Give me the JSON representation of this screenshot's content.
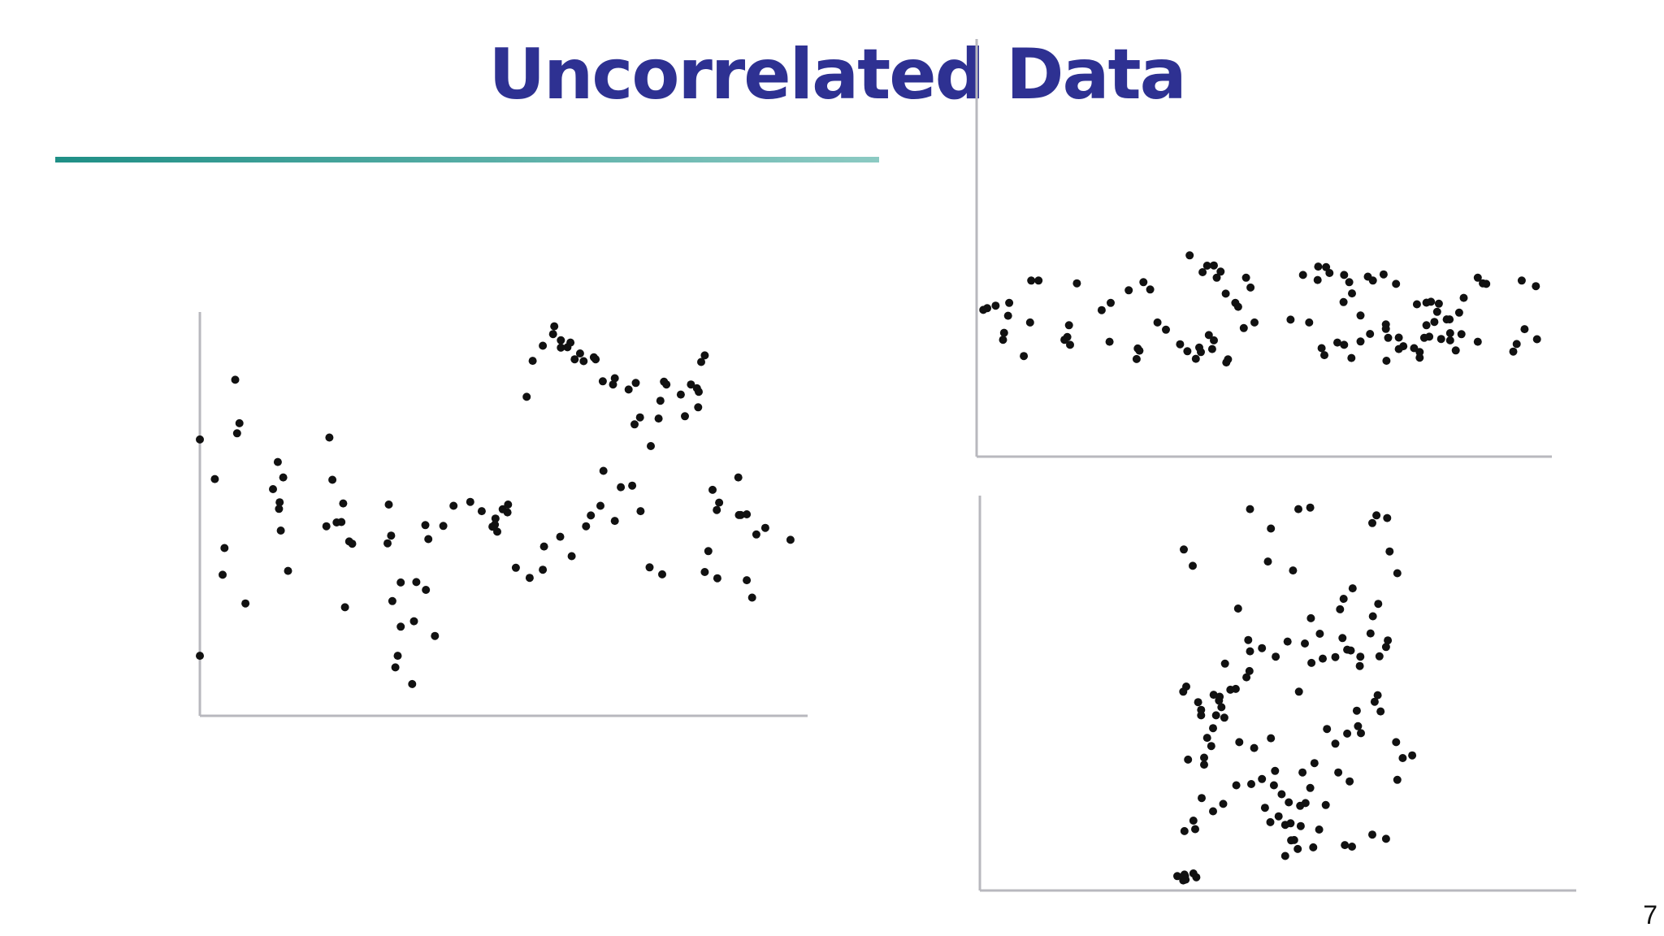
{
  "slide": {
    "title": "Uncorrelated Data",
    "page_number": "7",
    "accent_color": "#2e3192",
    "rule_gradient": [
      "#1f8f86",
      "#8ccac3"
    ]
  },
  "chart_data": [
    {
      "type": "scatter",
      "title": "",
      "xlabel": "",
      "ylabel": "",
      "xlim": [
        0,
        100
      ],
      "ylim": [
        0,
        100
      ],
      "grid": false,
      "x": [
        0,
        2.5,
        0,
        5.9,
        6.2,
        3.8,
        4.1,
        6.6,
        7.6,
        12.2,
        13.0,
        13.9,
        13.3,
        13.2,
        13.5,
        14.7,
        21.6,
        22.1,
        21.1,
        22.8,
        23.9,
        23.6,
        24.9,
        25.4,
        24.2,
        31.5,
        31.9,
        31.3,
        33.0,
        32.6,
        35.4,
        35.7,
        39.2,
        38.1,
        37.6,
        40.6,
        37.7,
        36.1,
        33.5,
        32.1,
        33.5,
        42.3,
        45.1,
        47.0,
        49.3,
        49.2,
        48.8,
        49.6,
        51.3,
        51.4,
        50.5,
        54.5,
        55.5,
        58.9,
        57.2,
        60.2,
        59.1,
        61.8,
        61.3,
        62.5,
        60.2,
        64.0,
        63.4,
        66.0,
        65.7,
        68.9,
        67.2,
        69.2,
        71.5,
        72.7,
        73.4,
        72.5,
        75.2,
        76.8,
        77.4,
        77.8,
        76.5,
        80.9,
        80.2,
        83.2,
        82.9,
        83.6,
        84.2,
        81.9,
        83.1,
        85.5,
        86.2,
        84.2,
        84.8,
        86.3,
        86.6,
        89.8,
        90.2,
        89.9,
        91.2,
        92.8,
        94.3,
        98.5,
        91.2,
        92.1,
        75.0,
        77.1,
        72.1,
        67.3,
        70.2,
        73.5,
        69.2,
        66.8,
        65.2,
        64.4,
        60.1,
        57.2,
        55.0,
        52.7,
        57.4,
        62.0
      ],
      "y": [
        71.3,
        61.1,
        15.5,
        86.7,
        72.9,
        36.4,
        43.3,
        75.5,
        29.0,
        58.5,
        65.5,
        61.5,
        55.1,
        53.4,
        47.8,
        37.4,
        71.8,
        60.9,
        48.9,
        49.9,
        54.8,
        50.0,
        45.0,
        44.4,
        28.0,
        54.5,
        46.5,
        44.5,
        15.5,
        12.5,
        8.2,
        24.4,
        20.6,
        45.6,
        49.2,
        49.0,
        32.5,
        34.5,
        23.0,
        29.6,
        34.4,
        54.2,
        55.2,
        52.8,
        50.9,
        49.3,
        48.8,
        47.5,
        52.5,
        54.5,
        53.3,
        82.3,
        91.6,
        98.5,
        95.5,
        96.9,
        100.5,
        96.3,
        95.1,
        92.0,
        95.0,
        91.5,
        93.5,
        92.0,
        92.5,
        85.5,
        86.3,
        87.1,
        84.2,
        85.9,
        77.0,
        75.2,
        69.6,
        81.3,
        86.2,
        85.5,
        76.7,
        77.3,
        82.9,
        83.6,
        84.5,
        91.3,
        93.0,
        85.5,
        79.6,
        58.3,
        53.1,
        37.1,
        42.5,
        35.5,
        55.0,
        61.5,
        51.8,
        51.8,
        52.0,
        46.8,
        48.5,
        45.4,
        35.0,
        30.5,
        38.3,
        36.5,
        59.4,
        63.2,
        59.0,
        52.8,
        50.3,
        54.2,
        51.7,
        48.9,
        46.2,
        37.7,
        35.6,
        38.2,
        43.7,
        41.2
      ]
    },
    {
      "type": "scatter",
      "title": "",
      "xlabel": "",
      "ylabel": "",
      "xlim": [
        0,
        100
      ],
      "ylim": [
        0,
        100
      ],
      "grid": false,
      "x": [
        1.3,
        2.8,
        5.2,
        5.0,
        8.9,
        9.1,
        10.4,
        4.3,
        7.8,
        4.1,
        0.6,
        17.2,
        15.8,
        15.0,
        15.5,
        16.0,
        21.6,
        23.2,
        23.0,
        26.4,
        29.0,
        30.2,
        28.0,
        27.8,
        28.3,
        31.5,
        33.0,
        35.5,
        36.8,
        38.3,
        39.2,
        38.9,
        41.2,
        41.5,
        40.6,
        43.7,
        44.0,
        46.8,
        45.3,
        45.8,
        48.7,
        43.6,
        42.0,
        39.5,
        37.2,
        40.3,
        42.7,
        41.5,
        47.2,
        48.0,
        55.1,
        57.3,
        58.4,
        59.9,
        60.0,
        62.0,
        61.4,
        64.6,
        65.5,
        67.5,
        64.5,
        66.0,
        68.8,
        69.7,
        71.6,
        73.8,
        72.0,
        72.4,
        74.3,
        75.1,
        77.0,
        78.0,
        78.0,
        78.8,
        79.2,
        80.6,
        80.0,
        81.4,
        83.3,
        83.4,
        85.4,
        85.8,
        88.3,
        89.8,
        89.2,
        96.1,
        98.6,
        98.8,
        96.6,
        95.2,
        94.6,
        88.3,
        84.4,
        81.8,
        79.7,
        82.8,
        85.0,
        83.4,
        81.1,
        79.2,
        77.5,
        74.3,
        72.1,
        72.0,
        69.2,
        67.5,
        65.9,
        64.6,
        63.4,
        61.1,
        60.6
      ],
      "y": [
        53.1,
        54.0,
        55.0,
        50.4,
        48.0,
        63.0,
        63.0,
        44.3,
        36.0,
        41.8,
        52.5,
        62.0,
        47.0,
        41.8,
        42.8,
        40.0,
        52.4,
        55.0,
        41.1,
        59.5,
        62.4,
        59.8,
        38.7,
        34.9,
        37.9,
        48.0,
        45.4,
        40.2,
        37.7,
        35.0,
        37.4,
        39.0,
        38.5,
        41.6,
        43.5,
        33.7,
        34.8,
        46.0,
        55.0,
        53.6,
        48.0,
        58.3,
        64.0,
        66.0,
        72.0,
        68.3,
        66.2,
        68.4,
        64.0,
        60.5,
        49.0,
        65.0,
        48.0,
        63.2,
        68.0,
        65.7,
        67.8,
        65.0,
        62.4,
        50.5,
        55.3,
        58.4,
        64.4,
        63.0,
        65.2,
        61.8,
        47.3,
        42.5,
        42.6,
        39.5,
        38.8,
        37.4,
        35.4,
        42.5,
        47.0,
        48.2,
        55.4,
        54.7,
        49.1,
        41.6,
        43.8,
        56.8,
        64.0,
        61.8,
        62.0,
        63.0,
        61.0,
        42.0,
        45.6,
        40.3,
        37.6,
        41.1,
        38.0,
        42.1,
        42.9,
        49.1,
        51.5,
        44.2,
        51.8,
        55.1,
        54.5,
        38.5,
        34.3,
        45.7,
        43.9,
        41.2,
        35.3,
        40.0,
        40.8,
        36.3,
        38.8
      ]
    },
    {
      "type": "scatter",
      "title": "",
      "xlabel": "",
      "ylabel": "",
      "xlim": [
        0,
        100
      ],
      "ylim": [
        0,
        100
      ],
      "grid": false,
      "x": [
        34.2,
        35.7,
        43.3,
        48.3,
        45.3,
        48.8,
        53.4,
        55.4,
        52.5,
        65.8,
        66.5,
        68.3,
        68.7,
        70.0,
        66.8,
        65.9,
        62.5,
        61.0,
        60.4,
        57.0,
        55.5,
        60.8,
        61.6,
        62.2,
        63.8,
        68.1,
        67.0,
        68.4,
        65.5,
        63.7,
        59.6,
        57.5,
        54.5,
        55.6,
        53.5,
        51.6,
        49.6,
        47.3,
        45.0,
        45.2,
        45.3,
        44.7,
        42.9,
        41.1,
        42.0,
        39.2,
        37.1,
        37.1,
        36.6,
        39.6,
        40.5,
        40.1,
        40.2,
        41.0,
        39.1,
        38.1,
        37.6,
        34.6,
        34.1,
        37.6,
        37.2,
        40.8,
        36.1,
        34.3,
        35.8,
        39.1,
        43.0,
        45.5,
        47.3,
        49.3,
        50.6,
        51.8,
        47.8,
        48.7,
        52.7,
        53.7,
        54.6,
        55.4,
        56.9,
        58.0,
        58.2,
        59.6,
        61.6,
        63.9,
        66.2,
        67.2,
        66.7,
        69.8,
        72.5,
        70.9,
        70.0,
        65.8,
        68.1,
        61.2,
        62.4,
        55.9,
        53.3,
        51.2,
        52.2,
        51.2,
        52.1,
        53.8,
        50.1,
        49.5,
        54.1,
        56.1,
        60.1,
        62.0,
        63.4,
        63.2,
        48.8,
        46.0,
        43.5,
        38.8,
        34.9,
        34.4,
        34.1,
        33.1,
        35.8,
        36.3,
        34.5,
        34.3
      ],
      "y": [
        87.8,
        83.6,
        72.6,
        84.7,
        98.2,
        93.2,
        98.2,
        98.6,
        82.4,
        94.6,
        96.6,
        95.9,
        87.3,
        81.7,
        73.8,
        70.6,
        77.8,
        75.1,
        72.4,
        66.1,
        70.1,
        65.0,
        62.0,
        61.8,
        60.2,
        62.7,
        60.3,
        64.4,
        66.2,
        57.8,
        60.1,
        59.7,
        63.6,
        58.6,
        51.2,
        64.1,
        60.2,
        62.4,
        64.5,
        56.5,
        61.6,
        54.9,
        51.9,
        58.4,
        51.7,
        50.4,
        45.1,
        46.5,
        48.5,
        45.1,
        47.2,
        48.9,
        49.9,
        44.5,
        41.8,
        39.3,
        34.2,
        52.5,
        51.2,
        32.4,
        23.8,
        22.3,
        15.8,
        15.3,
        18.0,
        20.4,
        27.1,
        27.4,
        28.7,
        27.1,
        24.8,
        22.7,
        21.3,
        17.6,
        13.0,
        21.8,
        22.5,
        26.4,
        15.7,
        22.0,
        41.6,
        37.8,
        40.4,
        40.5,
        48.6,
        46.1,
        50.3,
        38.2,
        34.8,
        34.1,
        28.5,
        14.4,
        13.3,
        11.7,
        11.3,
        11.1,
        10.7,
        8.9,
        12.9,
        16.9,
        17.3,
        16.6,
        19.1,
        30.8,
        30.4,
        32.8,
        30.4,
        28.1,
        42.3,
        46.3,
        39.2,
        36.7,
        38.2,
        37.2,
        33.7,
        3.7,
        2.6,
        3.7,
        4.4,
        3.4,
        2.8,
        4.1
      ]
    }
  ]
}
